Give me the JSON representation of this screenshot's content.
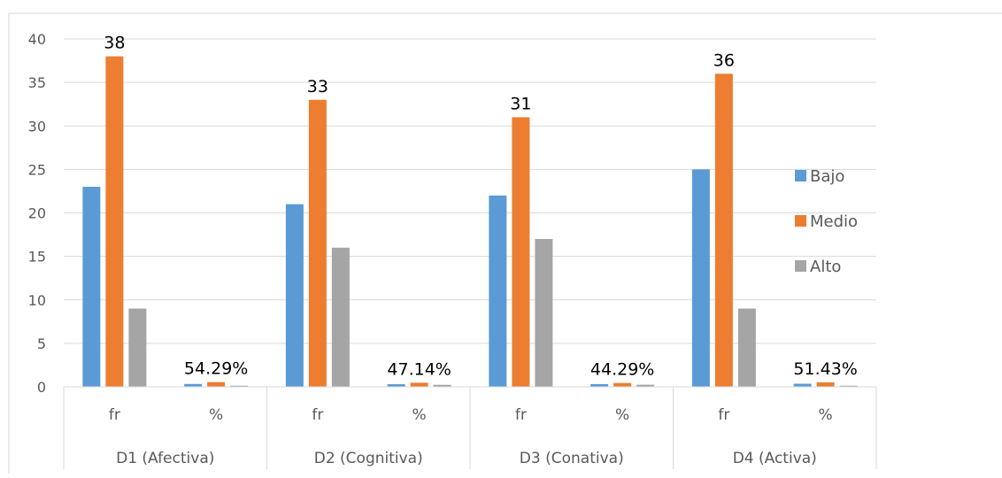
{
  "chart_data": {
    "type": "bar",
    "groups": [
      {
        "label": "D1 (Afectiva)",
        "subcategories": [
          "fr",
          "%"
        ]
      },
      {
        "label": "D2 (Cognitiva)",
        "subcategories": [
          "fr",
          "%"
        ]
      },
      {
        "label": "D3 (Conativa)",
        "subcategories": [
          "fr",
          "%"
        ]
      },
      {
        "label": "D4 (Activa)",
        "subcategories": [
          "fr",
          "%"
        ]
      }
    ],
    "series": [
      {
        "name": "Bajo",
        "color": "#5B9BD5",
        "values": [
          23,
          0.3286,
          21,
          0.3,
          22,
          0.3143,
          25,
          0.3571
        ]
      },
      {
        "name": "Medio",
        "color": "#ED7D31",
        "values": [
          38,
          0.5429,
          33,
          0.4714,
          31,
          0.4429,
          36,
          0.5143
        ]
      },
      {
        "name": "Alto",
        "color": "#A5A5A5",
        "values": [
          9,
          0.1286,
          16,
          0.2286,
          17,
          0.2429,
          9,
          0.1286
        ]
      }
    ],
    "data_labels": [
      {
        "bar_index": 0,
        "series": "Medio",
        "text": "38"
      },
      {
        "bar_index": 1,
        "series": "Medio",
        "text": "54.29%"
      },
      {
        "bar_index": 2,
        "series": "Medio",
        "text": "33"
      },
      {
        "bar_index": 3,
        "series": "Medio",
        "text": "47.14%"
      },
      {
        "bar_index": 4,
        "series": "Medio",
        "text": "31"
      },
      {
        "bar_index": 5,
        "series": "Medio",
        "text": "44.29%"
      },
      {
        "bar_index": 6,
        "series": "Medio",
        "text": "36"
      },
      {
        "bar_index": 7,
        "series": "Medio",
        "text": "51.43%"
      }
    ],
    "title": "",
    "xlabel": "",
    "ylabel": "",
    "ylim": [
      0,
      40
    ],
    "yticks": [
      0,
      5,
      10,
      15,
      20,
      25,
      30,
      35,
      40
    ],
    "grid": true,
    "legend_position": "right"
  }
}
